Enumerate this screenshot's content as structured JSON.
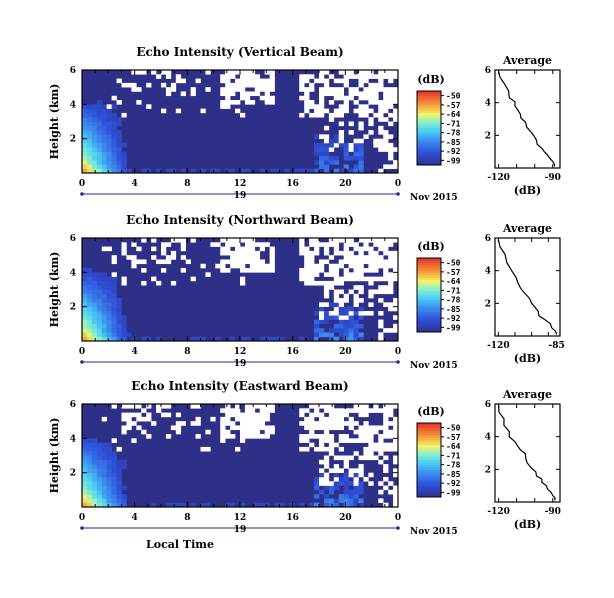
{
  "figure": {
    "xlabel_bottom": "Local Time",
    "date_label": "Nov 2015",
    "day_label": "19"
  },
  "chart_data": [
    {
      "type": "heatmap",
      "title": "Echo Intensity (Vertical Beam)",
      "ylabel": "Height (km)",
      "xlabel": "Local Time",
      "x_ticks": [
        "0",
        "4",
        "8",
        "12",
        "16",
        "20",
        "0"
      ],
      "y_ticks": [
        "2",
        "4",
        "6"
      ],
      "xlim": [
        0,
        24
      ],
      "ylim": [
        0,
        6
      ],
      "colorbar": {
        "unit": "(dB)",
        "ticks": [
          "-50",
          "-57",
          "-64",
          "-71",
          "-78",
          "-85",
          "-92",
          "-99"
        ],
        "range": [
          -99,
          -50
        ]
      }
    },
    {
      "type": "line",
      "title": "Average",
      "xlabel": "(dB)",
      "x_ticks": [
        "-120",
        "-90"
      ],
      "y_ticks": [
        "2",
        "4",
        "6"
      ],
      "xlim": [
        -122,
        -86
      ],
      "ylim": [
        0,
        6
      ],
      "x": [
        -120,
        -117,
        -114,
        -111,
        -108,
        -105,
        -102,
        -99,
        -96,
        -93,
        -90,
        -89
      ],
      "y": [
        5.9,
        5.2,
        4.3,
        3.8,
        3.3,
        2.8,
        2.2,
        1.7,
        1.2,
        0.8,
        0.4,
        0.1
      ]
    },
    {
      "type": "heatmap",
      "title": "Echo Intensity (Northward Beam)",
      "ylabel": "Height (km)",
      "xlabel": "Local Time",
      "x_ticks": [
        "0",
        "4",
        "8",
        "12",
        "16",
        "20",
        "0"
      ],
      "y_ticks": [
        "2",
        "4",
        "6"
      ],
      "xlim": [
        0,
        24
      ],
      "ylim": [
        0,
        6
      ],
      "colorbar": {
        "unit": "(dB)",
        "ticks": [
          "-50",
          "-57",
          "-64",
          "-71",
          "-78",
          "-85",
          "-92",
          "-99"
        ],
        "range": [
          -99,
          -50
        ]
      }
    },
    {
      "type": "line",
      "title": "Average",
      "xlabel": "(dB)",
      "x_ticks": [
        "-120",
        "-85"
      ],
      "y_ticks": [
        "2",
        "4",
        "6"
      ],
      "xlim": [
        -122,
        -83
      ],
      "ylim": [
        0,
        6
      ],
      "x": [
        -120,
        -116,
        -112,
        -108,
        -104,
        -100,
        -96,
        -92,
        -88,
        -85
      ],
      "y": [
        5.9,
        5.0,
        4.0,
        3.2,
        2.6,
        2.0,
        1.5,
        1.0,
        0.5,
        0.1
      ]
    },
    {
      "type": "heatmap",
      "title": "Echo Intensity (Eastward Beam)",
      "ylabel": "Height (km)",
      "xlabel": "Local Time",
      "x_ticks": [
        "0",
        "4",
        "8",
        "12",
        "16",
        "20",
        "0"
      ],
      "y_ticks": [
        "2",
        "4",
        "6"
      ],
      "xlim": [
        0,
        24
      ],
      "ylim": [
        0,
        6
      ],
      "colorbar": {
        "unit": "(dB)",
        "ticks": [
          "-50",
          "-57",
          "-64",
          "-71",
          "-78",
          "-85",
          "-92",
          "-99"
        ],
        "range": [
          -99,
          -50
        ]
      }
    },
    {
      "type": "line",
      "title": "Average",
      "xlabel": "(dB)",
      "x_ticks": [
        "-120",
        "-90"
      ],
      "y_ticks": [
        "2",
        "4",
        "6"
      ],
      "xlim": [
        -122,
        -86
      ],
      "ylim": [
        0,
        6
      ],
      "x": [
        -120,
        -117,
        -114,
        -111,
        -108,
        -105,
        -102,
        -99,
        -96,
        -93,
        -90,
        -89
      ],
      "y": [
        5.9,
        5.1,
        4.3,
        3.7,
        3.2,
        2.7,
        2.1,
        1.6,
        1.2,
        0.8,
        0.4,
        0.1
      ]
    }
  ]
}
